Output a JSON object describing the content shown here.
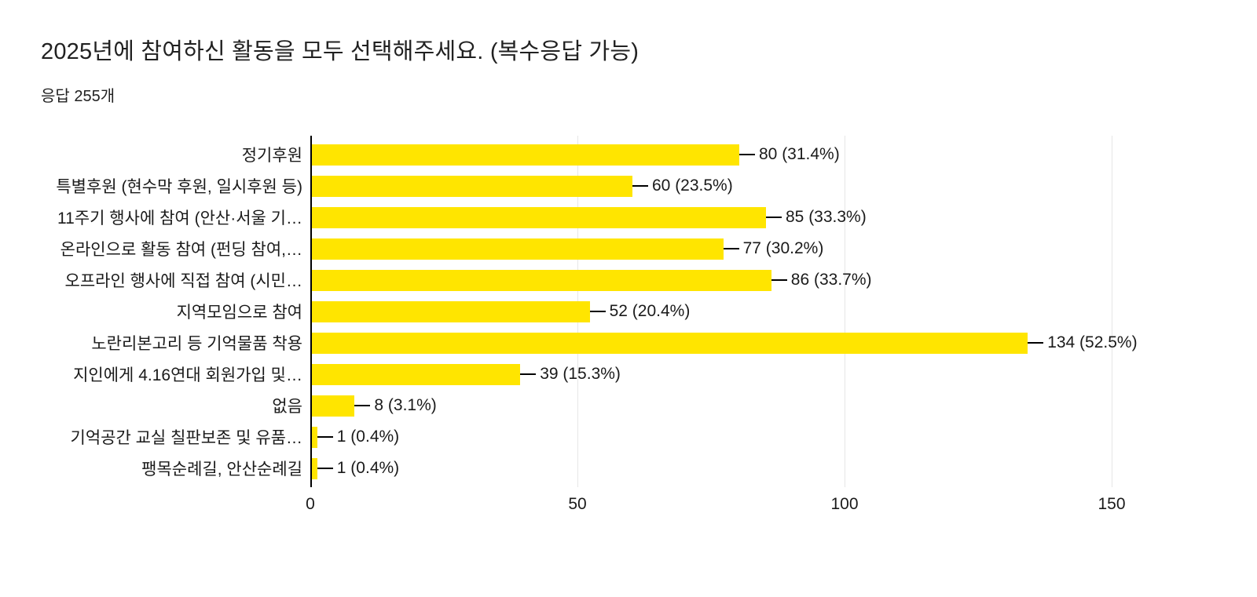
{
  "header": {
    "title": "2025년에 참여하신 활동을 모두 선택해주세요. (복수응답 가능)",
    "subtitle": "응답 255개"
  },
  "chart_data": {
    "type": "bar",
    "orientation": "horizontal",
    "title": "2025년에 참여하신 활동을 모두 선택해주세요. (복수응답 가능)",
    "subtitle": "응답 255개",
    "categories": [
      "정기후원",
      "특별후원 (현수막 후원, 일시후원 등)",
      "11주기 행사에 참여 (안산·서울 기…",
      "온라인으로 활동 참여 (펀딩 참여,…",
      "오프라인 행사에 직접 참여 (시민…",
      "지역모임으로 참여",
      "노란리본고리 등 기억물품 착용",
      "지인에게 4.16연대 회원가입 및…",
      "없음",
      "기억공간 교실 칠판보존 및 유품…",
      "팽목순례길, 안산순례길"
    ],
    "values": [
      80,
      60,
      85,
      77,
      86,
      52,
      134,
      39,
      8,
      1,
      1
    ],
    "value_labels": [
      "80 (31.4%)",
      "60 (23.5%)",
      "85 (33.3%)",
      "77 (30.2%)",
      "86 (33.7%)",
      "52 (20.4%)",
      "134 (52.5%)",
      "39 (15.3%)",
      "8 (3.1%)",
      "1 (0.4%)",
      "1 (0.4%)"
    ],
    "xlim": [
      0,
      150
    ],
    "xticks": [
      0,
      50,
      100,
      150
    ],
    "grid": true,
    "legend": false,
    "bar_color": "#ffe500",
    "axis_color": "#000000",
    "gridline_color": "#e6e6e6"
  }
}
